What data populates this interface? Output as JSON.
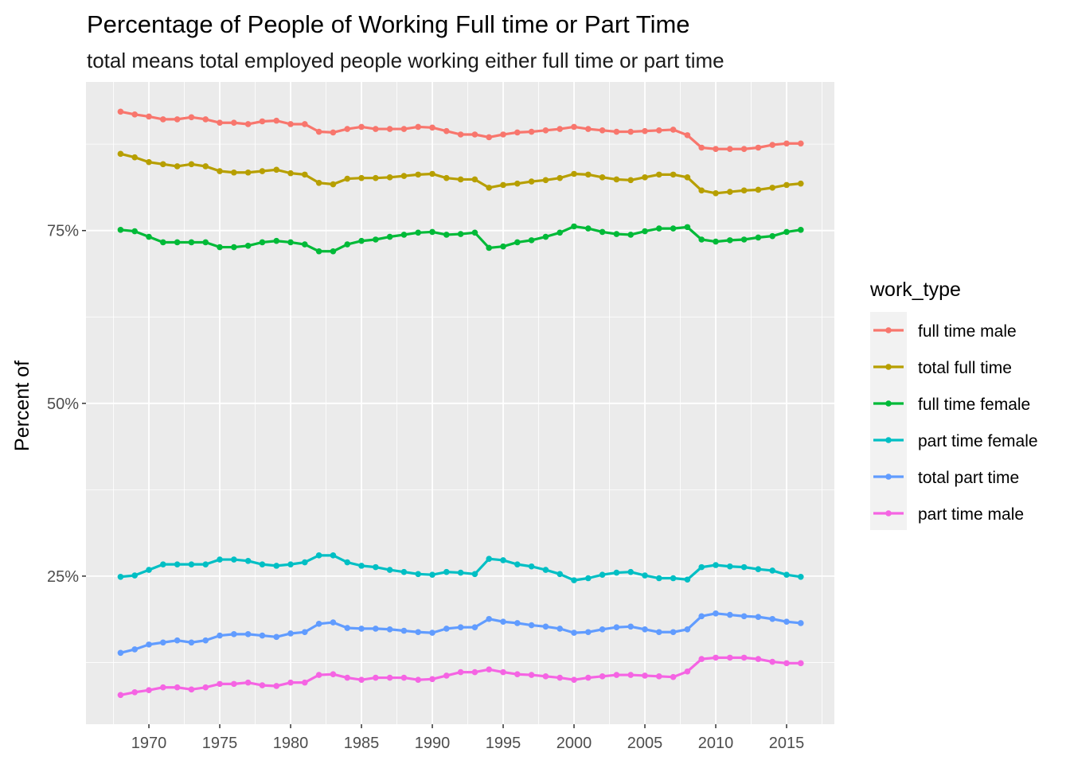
{
  "chart_data": {
    "type": "line",
    "title": "Percentage of People of Working Full time or Part Time",
    "subtitle": "total means total employed people working either full time or part time",
    "xlabel": "",
    "ylabel": "Percent of",
    "xlim": [
      1965.56,
      2018.37
    ],
    "ylim": [
      3.57,
      96.5
    ],
    "x_ticks": [
      1970,
      1975,
      1980,
      1985,
      1990,
      1995,
      2000,
      2005,
      2010,
      2015
    ],
    "x_tick_labels": [
      "1970",
      "1975",
      "1980",
      "1985",
      "1990",
      "1995",
      "2000",
      "2005",
      "2010",
      "2015"
    ],
    "y_ticks": [
      25,
      50,
      75
    ],
    "y_tick_labels": [
      "25%",
      "50%",
      "75%"
    ],
    "grid": true,
    "legend": {
      "title": "work_type",
      "placement": "right"
    },
    "x": [
      1968,
      1969,
      1970,
      1971,
      1972,
      1973,
      1974,
      1975,
      1976,
      1977,
      1978,
      1979,
      1980,
      1981,
      1982,
      1983,
      1984,
      1985,
      1986,
      1987,
      1988,
      1989,
      1990,
      1991,
      1992,
      1993,
      1994,
      1995,
      1996,
      1997,
      1998,
      1999,
      2000,
      2001,
      2002,
      2003,
      2004,
      2005,
      2006,
      2007,
      2008,
      2009,
      2010,
      2011,
      2012,
      2013,
      2014,
      2015,
      2016
    ],
    "series": [
      {
        "name": "full time male",
        "color": "#F8766D",
        "values": [
          92.2,
          91.8,
          91.5,
          91.1,
          91.1,
          91.4,
          91.1,
          90.6,
          90.6,
          90.4,
          90.8,
          90.9,
          90.4,
          90.4,
          89.3,
          89.2,
          89.7,
          90.0,
          89.7,
          89.7,
          89.7,
          90.0,
          89.9,
          89.4,
          88.9,
          88.9,
          88.5,
          88.9,
          89.2,
          89.3,
          89.5,
          89.7,
          90.0,
          89.7,
          89.5,
          89.3,
          89.3,
          89.4,
          89.5,
          89.6,
          88.8,
          87.0,
          86.8,
          86.8,
          86.8,
          87.0,
          87.4,
          87.6,
          87.6
        ]
      },
      {
        "name": "total full time",
        "color": "#B79F00",
        "values": [
          86.1,
          85.6,
          84.9,
          84.6,
          84.3,
          84.6,
          84.3,
          83.6,
          83.4,
          83.4,
          83.6,
          83.8,
          83.3,
          83.1,
          81.9,
          81.7,
          82.5,
          82.6,
          82.6,
          82.7,
          82.9,
          83.1,
          83.2,
          82.6,
          82.4,
          82.4,
          81.2,
          81.6,
          81.8,
          82.1,
          82.3,
          82.6,
          83.2,
          83.1,
          82.7,
          82.4,
          82.3,
          82.7,
          83.1,
          83.1,
          82.7,
          80.8,
          80.4,
          80.6,
          80.8,
          80.9,
          81.2,
          81.6,
          81.8
        ]
      },
      {
        "name": "full time female",
        "color": "#00BA38",
        "values": [
          75.1,
          74.9,
          74.1,
          73.3,
          73.3,
          73.3,
          73.3,
          72.6,
          72.6,
          72.8,
          73.3,
          73.5,
          73.3,
          73.0,
          72.0,
          72.0,
          73.0,
          73.5,
          73.7,
          74.1,
          74.4,
          74.7,
          74.8,
          74.4,
          74.5,
          74.7,
          72.5,
          72.7,
          73.3,
          73.6,
          74.1,
          74.7,
          75.6,
          75.3,
          74.8,
          74.5,
          74.4,
          74.9,
          75.3,
          75.3,
          75.5,
          73.7,
          73.4,
          73.6,
          73.7,
          74.0,
          74.2,
          74.8,
          75.1
        ]
      },
      {
        "name": "part time female",
        "color": "#00BFC4",
        "values": [
          24.9,
          25.1,
          25.9,
          26.7,
          26.7,
          26.7,
          26.7,
          27.4,
          27.4,
          27.2,
          26.7,
          26.5,
          26.7,
          27.0,
          28.0,
          28.0,
          27.0,
          26.5,
          26.3,
          25.9,
          25.6,
          25.3,
          25.2,
          25.6,
          25.5,
          25.3,
          27.5,
          27.3,
          26.7,
          26.4,
          25.9,
          25.3,
          24.4,
          24.7,
          25.2,
          25.5,
          25.6,
          25.1,
          24.7,
          24.7,
          24.5,
          26.3,
          26.6,
          26.4,
          26.3,
          26.0,
          25.8,
          25.2,
          24.9
        ]
      },
      {
        "name": "total part time",
        "color": "#619CFF",
        "values": [
          13.9,
          14.4,
          15.1,
          15.4,
          15.7,
          15.4,
          15.7,
          16.4,
          16.6,
          16.6,
          16.4,
          16.2,
          16.7,
          16.9,
          18.1,
          18.3,
          17.5,
          17.4,
          17.4,
          17.3,
          17.1,
          16.9,
          16.8,
          17.4,
          17.6,
          17.6,
          18.8,
          18.4,
          18.2,
          17.9,
          17.7,
          17.4,
          16.8,
          16.9,
          17.3,
          17.6,
          17.7,
          17.3,
          16.9,
          16.9,
          17.3,
          19.2,
          19.6,
          19.4,
          19.2,
          19.1,
          18.8,
          18.4,
          18.2
        ]
      },
      {
        "name": "part time male",
        "color": "#F564E3",
        "values": [
          7.8,
          8.2,
          8.5,
          8.9,
          8.9,
          8.6,
          8.9,
          9.4,
          9.4,
          9.6,
          9.2,
          9.1,
          9.6,
          9.6,
          10.7,
          10.8,
          10.3,
          10.0,
          10.3,
          10.3,
          10.3,
          10.0,
          10.1,
          10.6,
          11.1,
          11.1,
          11.5,
          11.1,
          10.8,
          10.7,
          10.5,
          10.3,
          10.0,
          10.3,
          10.5,
          10.7,
          10.7,
          10.6,
          10.5,
          10.4,
          11.2,
          13.0,
          13.2,
          13.2,
          13.2,
          13.0,
          12.6,
          12.4,
          12.4
        ]
      }
    ]
  }
}
